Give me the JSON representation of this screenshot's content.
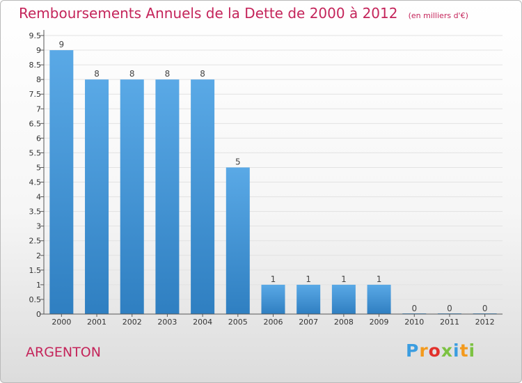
{
  "chart_data": {
    "type": "bar",
    "title": "Remboursements Annuels de la Dette de 2000 à 2012",
    "unit_note": "(en milliers d'€)",
    "categories": [
      "2000",
      "2001",
      "2002",
      "2003",
      "2004",
      "2005",
      "2006",
      "2007",
      "2008",
      "2009",
      "2010",
      "2011",
      "2012"
    ],
    "values": [
      9,
      8,
      8,
      8,
      8,
      5,
      1,
      1,
      1,
      1,
      0,
      0,
      0
    ],
    "data_labels": [
      "9",
      "8",
      "8",
      "8",
      "8",
      "5",
      "1",
      "1",
      "1",
      "1",
      "0",
      "0",
      "0"
    ],
    "y_ticks": [
      "0",
      "0.5",
      "1",
      "1.5",
      "2",
      "2.5",
      "3",
      "3.5",
      "4",
      "4.5",
      "5",
      "5.5",
      "6",
      "6.5",
      "7",
      "7.5",
      "8",
      "8.5",
      "9",
      "9.5"
    ],
    "ylim": [
      0,
      9.5
    ],
    "grid": true,
    "bar_color": "#5aa9e6",
    "bar_color_dark": "#2f7fc1"
  },
  "commune": "ARGENTON",
  "logo": {
    "letters": [
      "P",
      "r",
      "o",
      "x",
      "i",
      "t",
      "i"
    ],
    "colors": [
      "#3b9de0",
      "#f39a1d",
      "#e2312c",
      "#7cc242",
      "#3b9de0",
      "#f39a1d",
      "#7cc242"
    ]
  }
}
